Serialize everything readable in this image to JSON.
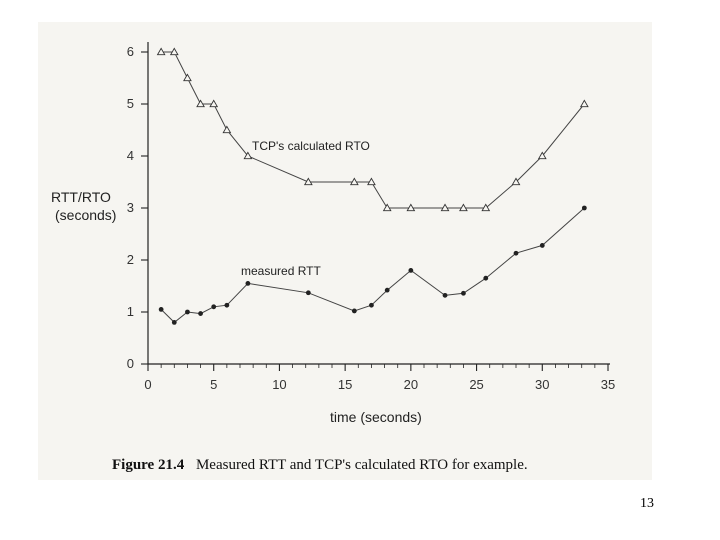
{
  "chart_data": {
    "type": "line",
    "ylabel_line1": "RTT/RTO",
    "ylabel_line2": "(seconds)",
    "xlabel": "time (seconds)",
    "xlim": [
      0,
      35
    ],
    "ylim": [
      0,
      6
    ],
    "x_ticks": [
      0,
      5,
      10,
      15,
      20,
      25,
      30,
      35
    ],
    "y_ticks": [
      0,
      1,
      2,
      3,
      4,
      5,
      6
    ],
    "grid": false,
    "series": [
      {
        "name": "TCP's calculated RTO",
        "marker": "triangle",
        "x": [
          1,
          2,
          3,
          4,
          5,
          6,
          7.6,
          12.2,
          15.7,
          17,
          18.2,
          20,
          22.6,
          24,
          25.7,
          28,
          30,
          33.2
        ],
        "y": [
          6,
          6,
          5.5,
          5,
          5,
          4.5,
          4,
          3.5,
          3.5,
          3.5,
          3,
          3,
          3,
          3,
          3,
          3.5,
          4,
          5
        ]
      },
      {
        "name": "measured RTT",
        "marker": "dot",
        "x": [
          1,
          2,
          3,
          4,
          5,
          6,
          7.6,
          12.2,
          15.7,
          17,
          18.2,
          20,
          22.6,
          24,
          25.7,
          28,
          30,
          33.2
        ],
        "y": [
          1.05,
          0.8,
          1,
          0.97,
          1.1,
          1.13,
          1.55,
          1.37,
          1.02,
          1.13,
          1.42,
          1.8,
          1.32,
          1.36,
          1.65,
          2.13,
          2.28,
          3
        ]
      }
    ]
  },
  "caption": {
    "figure_number": "Figure 21.4",
    "text": "Measured RTT and TCP's calculated RTO for example."
  },
  "page_number": "13"
}
